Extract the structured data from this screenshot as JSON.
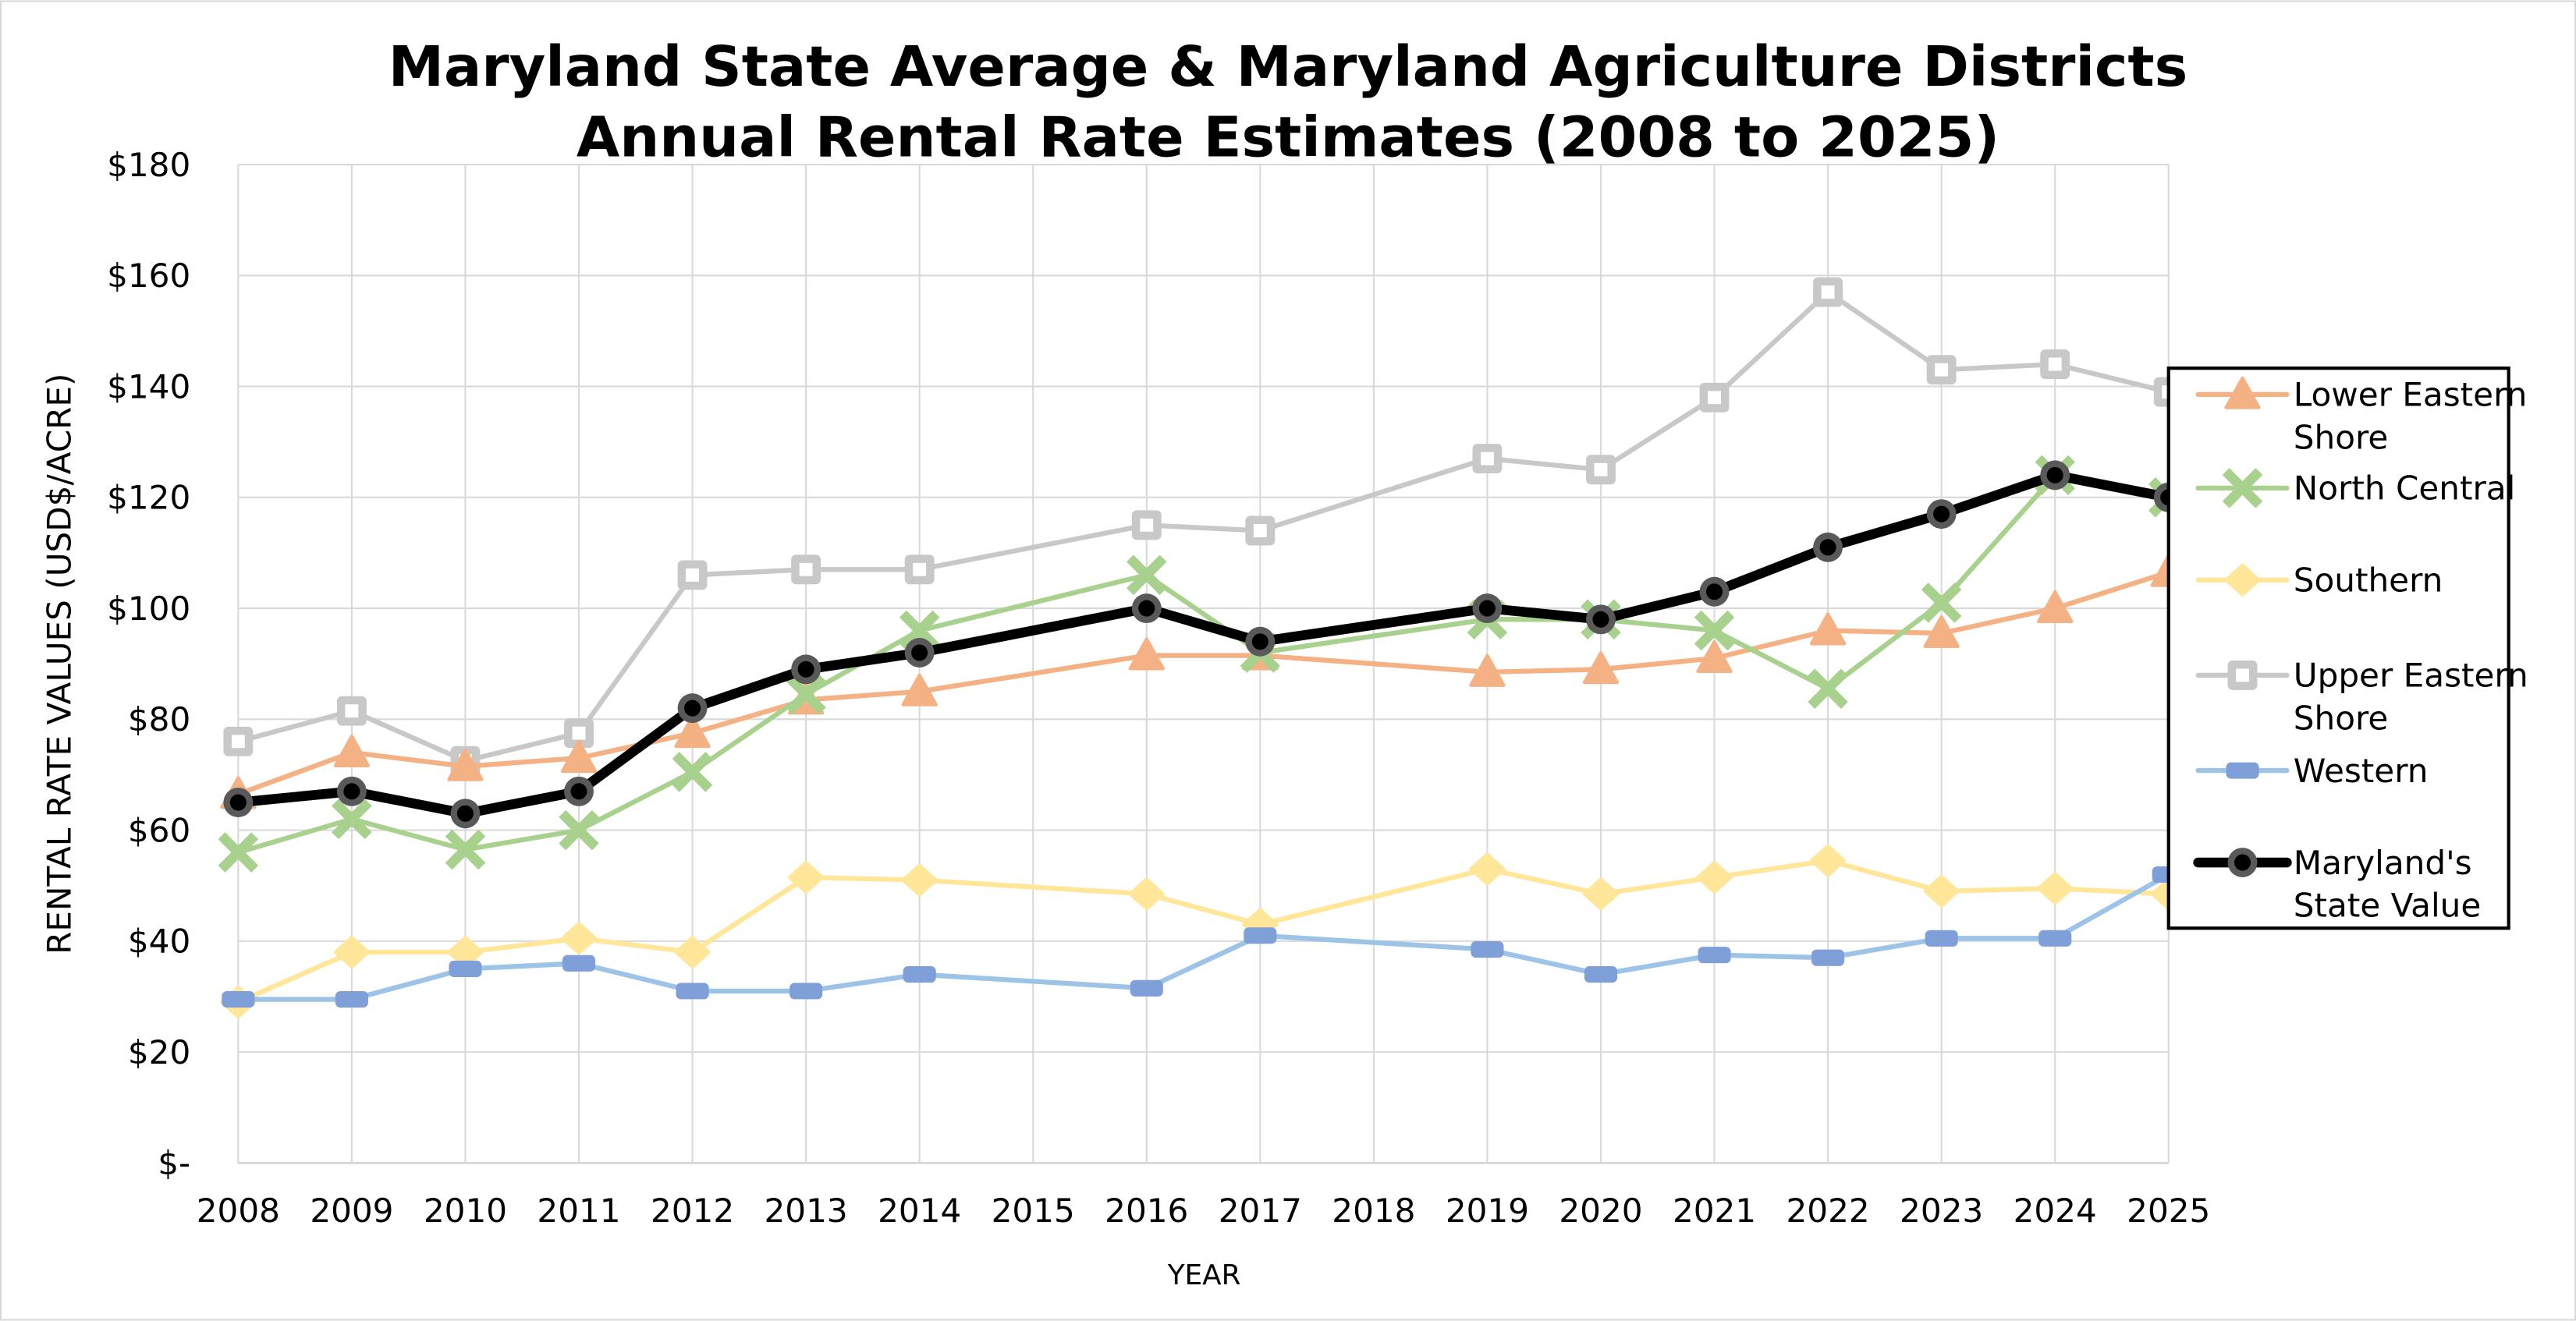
{
  "chart_data": {
    "type": "line",
    "title_lines": [
      "Maryland State Average & Maryland Agriculture Districts",
      "Annual Rental Rate Estimates (2008 to 2025)"
    ],
    "xlabel": "YEAR",
    "ylabel": "RENTAL RATE VALUES (USD$/ACRE)",
    "ylim": [
      0,
      180
    ],
    "yticks": [
      0,
      20,
      40,
      60,
      80,
      100,
      120,
      140,
      160,
      180
    ],
    "ytick_labels": [
      "$-",
      "$20",
      "$40",
      "$60",
      "$80",
      "$100",
      "$120",
      "$140",
      "$160",
      "$180"
    ],
    "categories": [
      "2008",
      "2009",
      "2010",
      "2011",
      "2012",
      "2013",
      "2014",
      "2015",
      "2016",
      "2017",
      "2018",
      "2019",
      "2020",
      "2021",
      "2022",
      "2023",
      "2024",
      "2025"
    ],
    "grid": true,
    "legend_position": "right",
    "series": [
      {
        "name": "Upper Eastern Shore",
        "legend_lines": [
          "Upper Eastern",
          "Shore"
        ],
        "color": "#c8c8c8",
        "marker": "square",
        "values": [
          76,
          81.5,
          72.5,
          77.5,
          106,
          107,
          107,
          null,
          115,
          114,
          null,
          127,
          125,
          138,
          157,
          143,
          144,
          139
        ]
      },
      {
        "name": "Lower Eastern Shore",
        "legend_lines": [
          "Lower Eastern",
          "Shore"
        ],
        "color": "#f4b183",
        "marker": "triangle",
        "values": [
          66.5,
          74,
          71.5,
          73,
          77.5,
          83.5,
          85,
          null,
          91.5,
          91.5,
          null,
          88.5,
          89,
          91,
          96,
          95.5,
          100,
          106.5
        ]
      },
      {
        "name": "North Central",
        "legend_lines": [
          "North Central"
        ],
        "color": "#a9d18e",
        "marker": "x",
        "values": [
          56,
          62,
          56.5,
          60,
          70.5,
          84.5,
          96,
          null,
          106,
          92,
          null,
          98,
          98,
          96,
          85.5,
          101,
          124,
          120
        ]
      },
      {
        "name": "Southern",
        "legend_lines": [
          "Southern"
        ],
        "color": "#ffe699",
        "marker": "diamond",
        "values": [
          29,
          38,
          38,
          40.5,
          38,
          51.5,
          51,
          null,
          48.5,
          43,
          null,
          53,
          48.5,
          51.5,
          54.5,
          49,
          49.5,
          48.5
        ]
      },
      {
        "name": "Western",
        "legend_lines": [
          "Western"
        ],
        "color": "#9dc3e6",
        "marker_color": "#7f9fd9",
        "marker": "dash",
        "values": [
          29.5,
          29.5,
          35,
          36,
          31,
          31,
          34,
          null,
          31.5,
          41,
          null,
          38.5,
          34,
          37.5,
          37,
          40.5,
          40.5,
          52
        ]
      },
      {
        "name": "Maryland's State Value",
        "legend_lines": [
          "Maryland's",
          "State Value"
        ],
        "color": "#000000",
        "marker_color": "#595959",
        "marker": "circle",
        "values": [
          65,
          67,
          63,
          67,
          82,
          89,
          92,
          null,
          100,
          94,
          null,
          100,
          98,
          103,
          111,
          117,
          124,
          120
        ]
      }
    ],
    "legend_order": [
      1,
      2,
      3,
      0,
      4,
      5
    ]
  }
}
